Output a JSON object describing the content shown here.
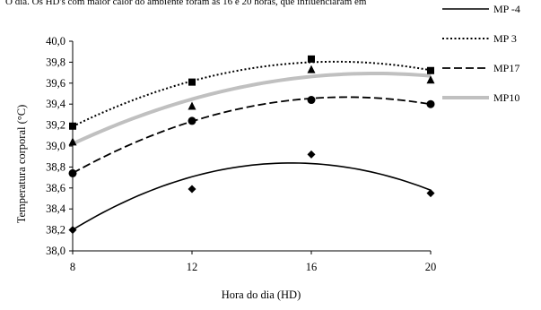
{
  "header_fragment": "O dia. Os HD's com maior calor do ambiente foram às 16 e 20 horas, que influenciaram em",
  "chart_data": {
    "type": "line",
    "title": "",
    "xlabel": "Hora do dia (HD)",
    "ylabel": "Temperatura corporal (°C)",
    "x": [
      8,
      12,
      16,
      20
    ],
    "xlim": [
      8,
      20
    ],
    "ylim": [
      38.0,
      40.0
    ],
    "yticks": [
      "38,0",
      "38,2",
      "38,4",
      "38,6",
      "38,8",
      "39,0",
      "39,2",
      "39,4",
      "39,6",
      "39,8",
      "40,0"
    ],
    "xticks": [
      "8",
      "12",
      "16",
      "20"
    ],
    "grid": false,
    "legend_position": "right",
    "series": [
      {
        "name": "MP -4",
        "marker": "diamond",
        "line_style": "solid",
        "color": "#000000",
        "values": [
          38.2,
          38.59,
          38.92,
          38.55
        ],
        "trend": [
          38.2,
          38.71,
          38.83,
          38.58
        ]
      },
      {
        "name": "MP 3",
        "marker": "square",
        "line_style": "dotted",
        "color": "#000000",
        "values": [
          39.19,
          39.61,
          39.83,
          39.72
        ],
        "trend": [
          39.19,
          39.61,
          39.81,
          39.72
        ]
      },
      {
        "name": "MP17",
        "marker": "circle",
        "line_style": "dashed",
        "color": "#000000",
        "values": [
          38.74,
          39.24,
          39.44,
          39.4
        ],
        "trend": [
          38.74,
          39.24,
          39.45,
          39.4
        ]
      },
      {
        "name": "MP10",
        "marker": "triangle",
        "line_style": "solid-thick",
        "color": "#c0c0c0",
        "values": [
          39.04,
          39.38,
          39.73,
          39.63
        ],
        "trend": [
          39.02,
          39.45,
          39.66,
          39.67
        ]
      }
    ]
  }
}
